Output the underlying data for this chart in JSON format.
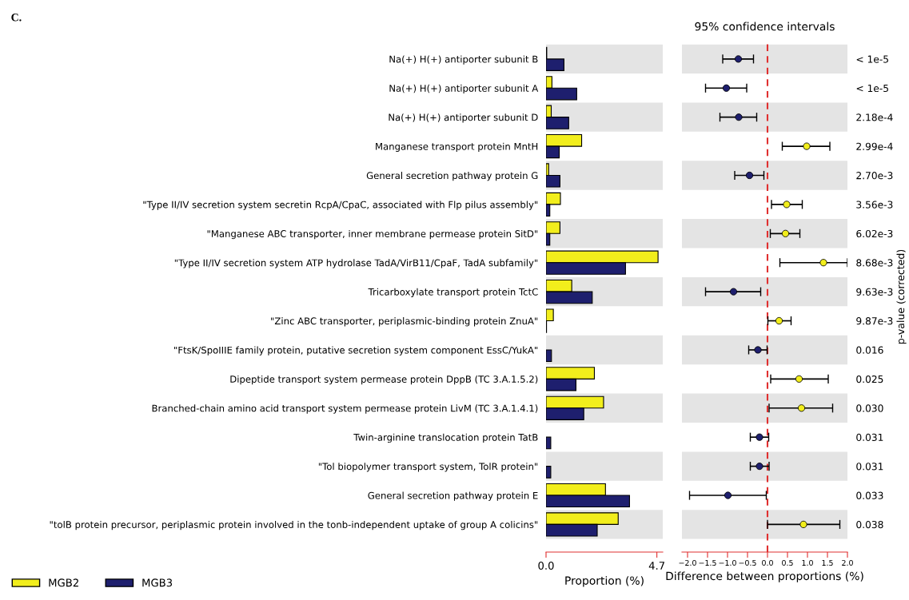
{
  "chart_data": [
    {
      "type": "bar",
      "orientation": "horizontal",
      "xlabel": "Proportion (%)",
      "annotations": [
        "C."
      ],
      "legend": "bottom left",
      "grid": false,
      "categories": [
        "Na(+) H(+) antiporter subunit B",
        "Na(+) H(+) antiporter subunit A",
        "Na(+) H(+) antiporter subunit D",
        "Manganese transport protein MntH",
        "General secretion pathway protein G",
        "\"Type II/IV secretion system secretin RcpA/CpaC, associated with Flp pilus assembly\"",
        "\"Manganese ABC transporter, inner membrane permease protein SitD\"",
        "\"Type II/IV secretion system ATP hydrolase TadA/VirB11/CpaF, TadA subfamily\"",
        "Tricarboxylate transport protein TctC",
        "\"Zinc ABC transporter, periplasmic-binding protein ZnuA\"",
        "\"FtsK/SpoIIIE family protein, putative secretion system component EssC/YukA\"",
        "Dipeptide transport system permease protein DppB (TC 3.A.1.5.2)",
        "Branched-chain amino acid transport system permease protein LivM (TC 3.A.1.4.1)",
        "Twin-arginine translocation protein TatB",
        "\"Tol biopolymer transport system, TolR protein\"",
        "General secretion pathway protein E",
        "\"tolB protein precursor, periplasmic protein involved in the tonb-independent uptake of group A colicins\""
      ],
      "series": [
        {
          "name": "MGB2",
          "color": "#f2ee1c",
          "values": [
            0.03,
            0.25,
            0.22,
            1.51,
            0.11,
            0.61,
            0.59,
            4.75,
            1.09,
            0.31,
            null,
            2.05,
            2.44,
            null,
            null,
            2.52,
            3.06
          ]
        },
        {
          "name": "MGB3",
          "color": "#1e1f6e",
          "values": [
            0.76,
            1.3,
            0.96,
            0.56,
            0.59,
            0.16,
            0.16,
            3.37,
            1.96,
            0.02,
            0.23,
            1.27,
            1.6,
            0.2,
            0.2,
            3.54,
            2.17
          ]
        }
      ],
      "xlim": [
        0,
        4.95
      ],
      "xticks": [
        {
          "value": 0,
          "label": "0.0"
        },
        {
          "value": 4.7,
          "label": "4.7"
        }
      ],
      "tick_labels": "x"
    },
    {
      "type": "scatter",
      "orientation": "horizontal",
      "title": "95% confidence intervals",
      "xlabel": "Difference between proportions (%)",
      "y2label": "p-value (corrected)",
      "marker": "circle",
      "grid": false,
      "tick_labels": "x",
      "categories": [
        null,
        null,
        null,
        null,
        null,
        null,
        null,
        null,
        null,
        null,
        null,
        null,
        null,
        null,
        null,
        null,
        null
      ],
      "y2_categories": [
        "< 1e-5",
        "< 1e-5",
        "2.18e-4",
        "2.99e-4",
        "2.70e-3",
        "3.56e-3",
        "6.02e-3",
        "8.68e-3",
        "9.63e-3",
        "9.87e-3",
        "0.016",
        "0.025",
        "0.030",
        "0.031",
        "0.031",
        "0.033",
        "0.038"
      ],
      "values": [
        -0.73,
        -1.03,
        -0.72,
        0.98,
        -0.45,
        0.48,
        0.45,
        1.4,
        -0.85,
        0.29,
        -0.24,
        0.79,
        0.85,
        -0.2,
        -0.2,
        -0.99,
        0.9
      ],
      "errors": [
        [
          -1.12,
          -0.35
        ],
        [
          -1.55,
          -0.52
        ],
        [
          -1.19,
          -0.27
        ],
        [
          0.37,
          1.56
        ],
        [
          -0.82,
          -0.09
        ],
        [
          0.1,
          0.87
        ],
        [
          0.07,
          0.81
        ],
        [
          0.31,
          2.0
        ],
        [
          -1.55,
          -0.17
        ],
        [
          0.01,
          0.59
        ],
        [
          -0.47,
          -0.01
        ],
        [
          0.08,
          1.52
        ],
        [
          0.04,
          1.63
        ],
        [
          -0.43,
          0.03
        ],
        [
          -0.43,
          0.04
        ],
        [
          -1.95,
          -0.03
        ],
        [
          0.0,
          1.81
        ]
      ],
      "colors": [
        "#1e1f6e",
        "#1e1f6e",
        "#1e1f6e",
        "#f2ee1c",
        "#1e1f6e",
        "#f2ee1c",
        "#f2ee1c",
        "#f2ee1c",
        "#1e1f6e",
        "#f2ee1c",
        "#1e1f6e",
        "#f2ee1c",
        "#f2ee1c",
        "#1e1f6e",
        "#1e1f6e",
        "#1e1f6e",
        "#f2ee1c"
      ],
      "ref_lines": [
        {
          "axis": "x",
          "value": 0,
          "color": "#e03030",
          "line_style": "dashed"
        }
      ],
      "xlim": [
        -2.14,
        2.0
      ],
      "xticks": [
        {
          "value": -2.0,
          "label": "−2.0"
        },
        {
          "value": -1.5,
          "label": "−1.5"
        },
        {
          "value": -1.0,
          "label": "−1.0"
        },
        {
          "value": -0.5,
          "label": "−0.5"
        },
        {
          "value": 0.0,
          "label": "0.0"
        },
        {
          "value": 0.5,
          "label": "0.5"
        },
        {
          "value": 1.0,
          "label": "1.0"
        },
        {
          "value": 1.5,
          "label": "1.5"
        },
        {
          "value": 2.0,
          "label": "2.0"
        }
      ]
    }
  ]
}
